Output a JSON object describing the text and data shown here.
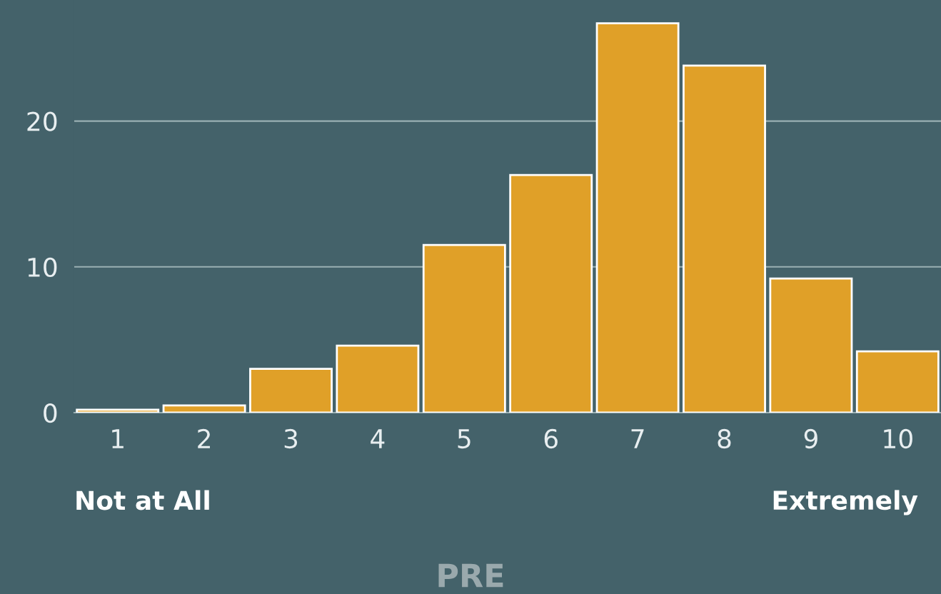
{
  "chart_data": {
    "type": "bar",
    "title": "PRE",
    "categories": [
      "1",
      "2",
      "3",
      "4",
      "5",
      "6",
      "7",
      "8",
      "9",
      "10"
    ],
    "values": [
      0.2,
      0.5,
      3.0,
      4.6,
      11.5,
      16.3,
      26.7,
      23.8,
      9.2,
      4.2
    ],
    "color": "#e0a028",
    "ylim": [
      0,
      28.3
    ],
    "yticks": [
      0,
      10,
      20
    ],
    "grid": "y",
    "annotations": [
      "Not at All",
      "Extremely"
    ]
  }
}
